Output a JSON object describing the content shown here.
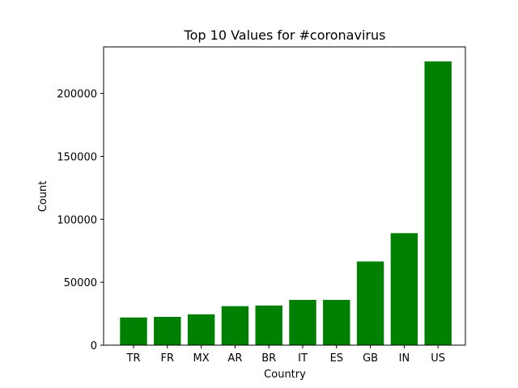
{
  "chart_data": {
    "type": "bar",
    "title": "Top 10 Values for #coronavirus",
    "xlabel": "Country",
    "ylabel": "Count",
    "categories": [
      "TR",
      "FR",
      "MX",
      "AR",
      "BR",
      "IT",
      "ES",
      "GB",
      "IN",
      "US"
    ],
    "values": [
      22000,
      22500,
      24500,
      31000,
      31500,
      36000,
      36000,
      66500,
      89000,
      225500
    ],
    "ylim": [
      0,
      237000
    ],
    "yticks": [
      0,
      50000,
      100000,
      150000,
      200000
    ],
    "ytick_labels": [
      "0",
      "50000",
      "100000",
      "150000",
      "200000"
    ],
    "bar_color": "#008000",
    "grid": false,
    "legend": "none"
  }
}
